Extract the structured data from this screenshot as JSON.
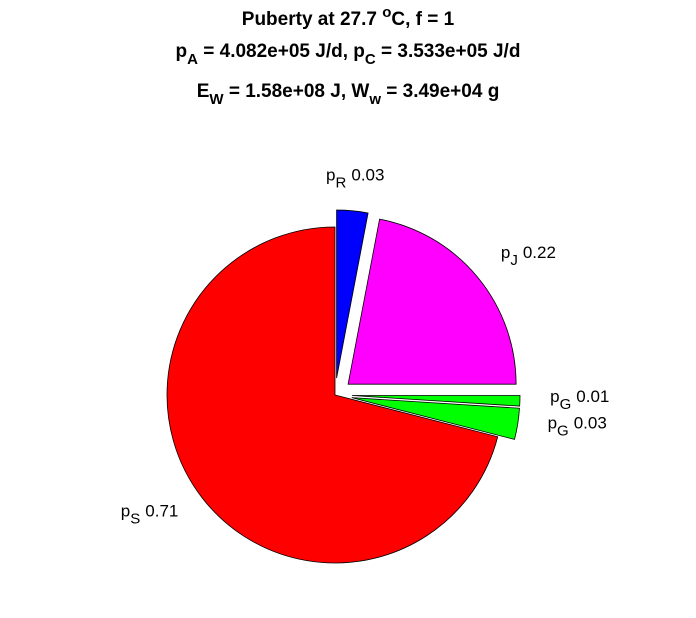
{
  "chart_data": {
    "type": "pie",
    "title_lines": [
      [
        {
          "text": "Puberty at 27.7 "
        },
        {
          "text": "o",
          "style": "sup"
        },
        {
          "text": "C, f = 1"
        }
      ],
      [
        {
          "text": "p"
        },
        {
          "text": "A",
          "style": "sub"
        },
        {
          "text": " = 4.082e+05 J/d,  p"
        },
        {
          "text": "C",
          "style": "sub"
        },
        {
          "text": " = 3.533e+05 J/d"
        }
      ],
      [
        {
          "text": "E"
        },
        {
          "text": "W",
          "style": "sub"
        },
        {
          "text": " = 1.58e+08 J, W"
        },
        {
          "text": "w",
          "style": "sub"
        },
        {
          "text": " = 3.49e+04 g"
        }
      ]
    ],
    "categories": [
      "pR",
      "pJ",
      "pG",
      "pG",
      "pS"
    ],
    "values": [
      0.03,
      0.22,
      0.01,
      0.03,
      0.71
    ],
    "colors": [
      "#0000ff",
      "#ff00ff",
      "#00ff00",
      "#00ff00",
      "#ff0000"
    ],
    "explode": [
      true,
      true,
      true,
      true,
      false
    ]
  }
}
